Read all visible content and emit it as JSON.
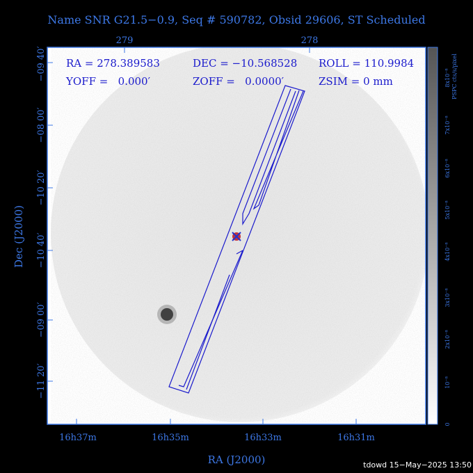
{
  "header": {
    "title": "Name SNR G21.5−0.9, Seq # 590782, Obsid 29606, ST Scheduled"
  },
  "info": {
    "ra": "RA = 278.389583",
    "dec": "DEC = −10.568528",
    "roll": "ROLL = 110.9984",
    "yoff": "YOFF =   0.000′",
    "zoff": "ZOFF =   0.0000′",
    "zsim": "ZSIM = 0 mm"
  },
  "top_axis": {
    "labels": [
      "279",
      "278"
    ]
  },
  "left_axis": {
    "title": "Dec (J2000)",
    "labels": [
      "−09 40′",
      "−08 00′",
      "−10 20′",
      "−10 40′",
      "−09 00′",
      "−11 20′"
    ]
  },
  "bottom_axis": {
    "title": "RA (J2000)",
    "labels": [
      "16h37m",
      "16h35m",
      "16h33m",
      "16h31m"
    ]
  },
  "colorbar": {
    "title": "PSPC cts/s/pixel",
    "labels": [
      "0",
      "10⁻⁸",
      "2x10⁻⁸",
      "3x10⁻⁸",
      "4x10⁻⁸",
      "5x10⁻⁸",
      "6x10⁻⁸",
      "7x10⁻⁸",
      "8x10⁻⁸"
    ]
  },
  "footer": {
    "stamp": "tdowd 15−May−2025 13:50"
  }
}
